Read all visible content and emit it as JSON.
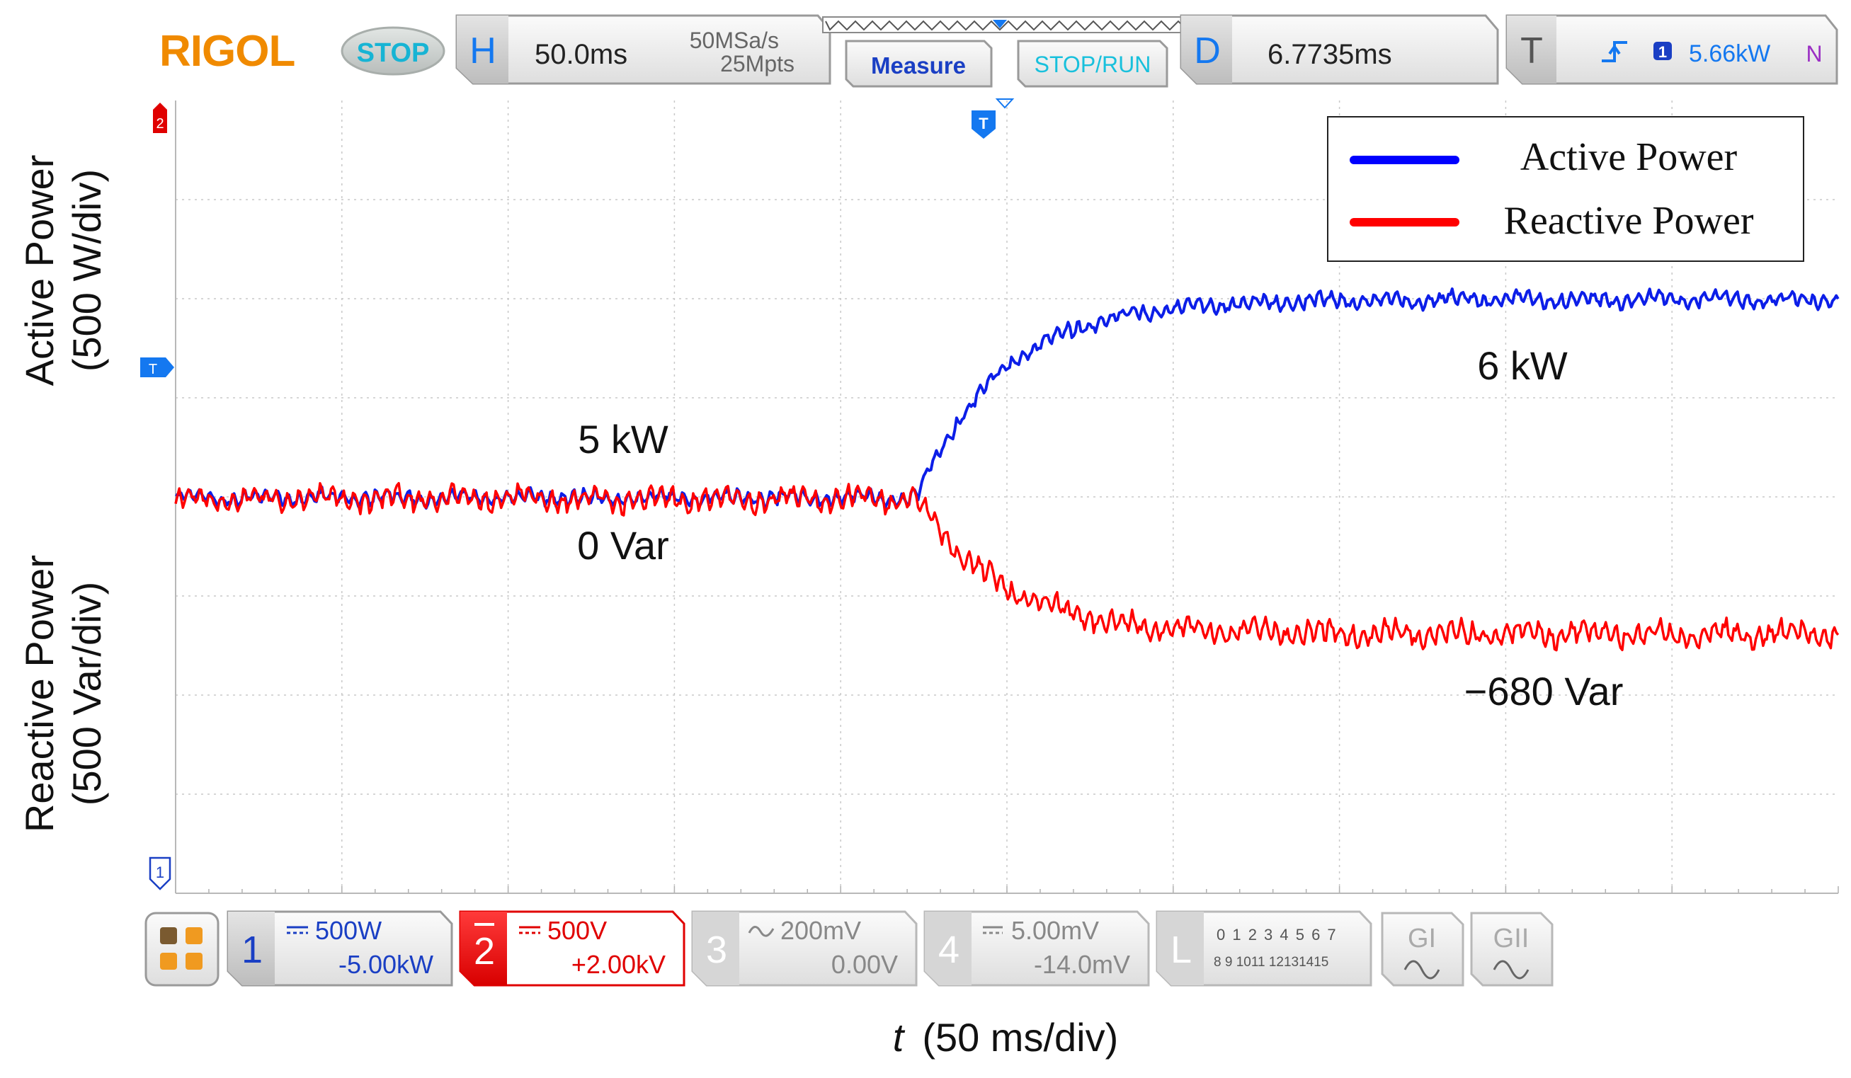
{
  "brand": {
    "logo": "RIGOL",
    "run_status": "STOP"
  },
  "timebase": {
    "letter": "H",
    "scale": "50.0ms",
    "sample_rate": "50MSa/s",
    "memory_depth": "25Mpts"
  },
  "buttons": {
    "measure": "Measure",
    "stop_run": "STOP/RUN",
    "menu_icon": "grid-menu-icon"
  },
  "delay": {
    "letter": "D",
    "value": "6.7735ms"
  },
  "trigger": {
    "letter": "T",
    "source": "1",
    "level": "5.66kW",
    "mode": "N",
    "edge_icon": "rising-edge-icon",
    "marker": "T"
  },
  "markers": {
    "ch2": "2",
    "ch1": "1",
    "trig_level": "T"
  },
  "channels": [
    {
      "number": "1",
      "scale": "500W",
      "offset": "-5.00kW",
      "color": "#1a1aff",
      "active": true,
      "coupling_icon": "dc-coupling-icon"
    },
    {
      "number": "2",
      "scale": "500V",
      "offset": "+2.00kV",
      "color": "#ff0000",
      "active": true,
      "coupling_icon": "dc-coupling-icon"
    },
    {
      "number": "3",
      "scale": "200mV",
      "offset": "0.00V",
      "color": "#9a9a9a",
      "active": false,
      "coupling_icon": "ac-coupling-icon"
    },
    {
      "number": "4",
      "scale": "5.00mV",
      "offset": "-14.0mV",
      "color": "#9a9a9a",
      "active": false,
      "coupling_icon": "dc-coupling-icon"
    }
  ],
  "logic": {
    "letter": "L",
    "row1": "0 1 2 3  4 5 6 7",
    "row2": "8 9 1011 12131415"
  },
  "generators": [
    {
      "label": "GI",
      "icon": "sine-wave-icon"
    },
    {
      "label": "GII",
      "icon": "sine-wave-icon"
    }
  ],
  "axis_labels": {
    "active_line1": "Active Power",
    "active_line2": "(500 W/div)",
    "reactive_line1": "Reactive Power",
    "reactive_line2": "(500 Var/div)",
    "time_var": "t",
    "time_unit": "(50 ms/div)"
  },
  "annotations": {
    "active_before": "5 kW",
    "reactive_before": "0 Var",
    "active_after": "6 kW",
    "reactive_after": "−680 Var"
  },
  "legend": [
    {
      "label": "Active Power",
      "color": "#0000ff"
    },
    {
      "label": "Reactive Power",
      "color": "#ff0000"
    }
  ],
  "chart_data": {
    "type": "line",
    "x_unit": "ms",
    "x_per_div": 50,
    "x_range_ms": [
      0,
      500
    ],
    "step_time_ms": 223,
    "series": [
      {
        "name": "Active Power",
        "unit": "W",
        "per_div": 500,
        "before": 5000,
        "after": 6000,
        "time_constant_ms": 25,
        "ripple": 60
      },
      {
        "name": "Reactive Power",
        "unit": "Var",
        "per_div": 500,
        "before": 0,
        "after": -680,
        "time_constant_ms": 25,
        "ripple": 90
      }
    ]
  }
}
